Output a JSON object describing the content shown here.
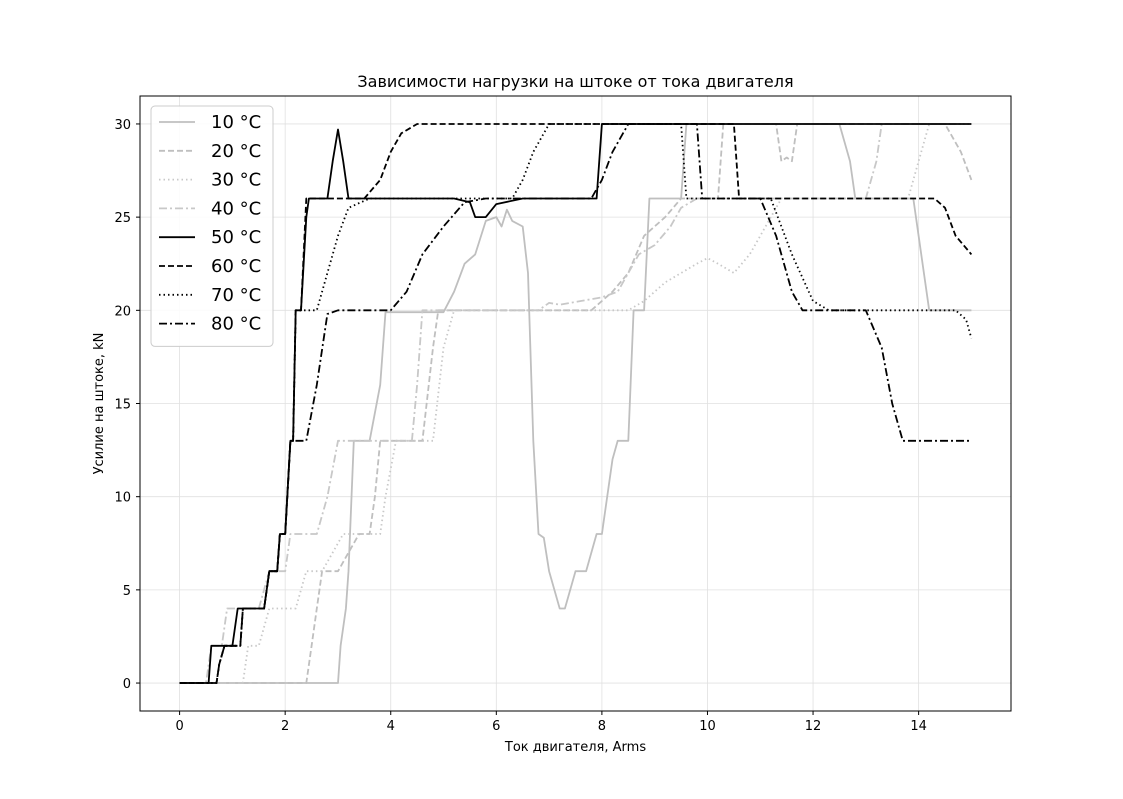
{
  "chart_data": {
    "type": "line",
    "title": "Зависимости нагрузки на штоке от тока двигателя",
    "xlabel": "Ток двигателя, Arms",
    "ylabel": "Усилие на штоке, kN",
    "xlim": [
      -0.75,
      15.75
    ],
    "ylim": [
      -1.5,
      31.5
    ],
    "xticks": [
      0,
      2,
      4,
      6,
      8,
      10,
      12,
      14
    ],
    "yticks": [
      0,
      5,
      10,
      15,
      20,
      25,
      30
    ],
    "grid": true,
    "legend_position": "top-left",
    "series": [
      {
        "name": "10 °C",
        "color": "#bfbfbf",
        "linestyle": "solid",
        "points": [
          [
            0,
            0
          ],
          [
            3.0,
            0
          ],
          [
            3.05,
            2
          ],
          [
            3.15,
            4
          ],
          [
            3.2,
            6
          ],
          [
            3.3,
            13
          ],
          [
            3.6,
            13
          ],
          [
            3.8,
            16
          ],
          [
            3.9,
            19.9
          ],
          [
            5.0,
            19.9
          ],
          [
            5.2,
            21
          ],
          [
            5.4,
            22.5
          ],
          [
            5.6,
            23
          ],
          [
            5.8,
            24.8
          ],
          [
            6.0,
            25
          ],
          [
            6.1,
            24.5
          ],
          [
            6.2,
            25.4
          ],
          [
            6.3,
            24.8
          ],
          [
            6.5,
            24.5
          ],
          [
            6.6,
            22
          ],
          [
            6.7,
            13
          ],
          [
            6.8,
            8
          ],
          [
            6.9,
            7.8
          ],
          [
            7.0,
            6
          ],
          [
            7.2,
            4
          ],
          [
            7.3,
            4
          ],
          [
            7.5,
            6
          ],
          [
            7.7,
            6
          ],
          [
            7.9,
            8
          ],
          [
            8.0,
            8
          ],
          [
            8.2,
            12
          ],
          [
            8.3,
            13
          ],
          [
            8.5,
            13
          ],
          [
            8.6,
            20
          ],
          [
            8.8,
            20
          ],
          [
            8.9,
            26
          ],
          [
            9.5,
            26
          ],
          [
            9.6,
            30
          ],
          [
            12.5,
            30
          ],
          [
            12.7,
            28
          ],
          [
            12.8,
            26
          ],
          [
            13.9,
            26
          ],
          [
            14.0,
            24
          ],
          [
            14.2,
            20
          ],
          [
            15.0,
            20
          ]
        ]
      },
      {
        "name": "20 °C",
        "color": "#bfbfbf",
        "linestyle": "dashed",
        "points": [
          [
            0,
            0
          ],
          [
            2.4,
            0
          ],
          [
            2.5,
            2
          ],
          [
            2.6,
            4
          ],
          [
            2.7,
            6
          ],
          [
            3.0,
            6
          ],
          [
            3.2,
            7
          ],
          [
            3.4,
            8
          ],
          [
            3.6,
            8
          ],
          [
            3.7,
            10
          ],
          [
            3.8,
            13
          ],
          [
            4.6,
            13
          ],
          [
            4.8,
            18
          ],
          [
            4.9,
            20
          ],
          [
            7.8,
            20
          ],
          [
            8.0,
            20.5
          ],
          [
            8.2,
            21
          ],
          [
            8.5,
            22
          ],
          [
            8.8,
            24
          ],
          [
            9.2,
            25
          ],
          [
            9.5,
            26
          ],
          [
            10.2,
            26
          ],
          [
            10.3,
            30
          ],
          [
            11.3,
            30
          ],
          [
            11.4,
            28
          ],
          [
            11.5,
            28.2
          ],
          [
            11.6,
            28
          ],
          [
            11.7,
            30
          ],
          [
            14.5,
            30
          ],
          [
            14.8,
            28.5
          ],
          [
            15.0,
            27
          ]
        ]
      },
      {
        "name": "30 °C",
        "color": "#c8c8c8",
        "linestyle": "dotted",
        "points": [
          [
            0,
            0
          ],
          [
            1.2,
            0
          ],
          [
            1.3,
            2
          ],
          [
            1.5,
            2
          ],
          [
            1.7,
            4
          ],
          [
            2.2,
            4
          ],
          [
            2.4,
            6
          ],
          [
            2.7,
            6
          ],
          [
            2.9,
            7
          ],
          [
            3.1,
            8
          ],
          [
            3.5,
            8
          ],
          [
            3.8,
            8
          ],
          [
            3.9,
            10
          ],
          [
            4.1,
            13
          ],
          [
            4.8,
            13
          ],
          [
            5.0,
            18
          ],
          [
            5.2,
            20
          ],
          [
            8.5,
            20
          ],
          [
            8.8,
            20.5
          ],
          [
            9.2,
            21.5
          ],
          [
            9.5,
            22
          ],
          [
            9.8,
            22.5
          ],
          [
            10.0,
            22.8
          ],
          [
            10.2,
            22.5
          ],
          [
            10.5,
            22
          ],
          [
            10.8,
            23
          ],
          [
            11.0,
            24
          ],
          [
            11.4,
            26
          ],
          [
            13.8,
            26
          ],
          [
            14.0,
            28
          ],
          [
            14.2,
            30
          ],
          [
            15.0,
            30
          ]
        ]
      },
      {
        "name": "40 °C",
        "color": "#c8c8c8",
        "linestyle": "dashdot",
        "points": [
          [
            0,
            0
          ],
          [
            0.5,
            0
          ],
          [
            0.6,
            2
          ],
          [
            0.8,
            2
          ],
          [
            0.9,
            4
          ],
          [
            1.5,
            4
          ],
          [
            1.7,
            6
          ],
          [
            2.0,
            6
          ],
          [
            2.1,
            8
          ],
          [
            2.6,
            8
          ],
          [
            2.8,
            10
          ],
          [
            3.0,
            13
          ],
          [
            4.4,
            13
          ],
          [
            4.5,
            16
          ],
          [
            4.6,
            20
          ],
          [
            6.8,
            20
          ],
          [
            7.0,
            20.4
          ],
          [
            7.2,
            20.3
          ],
          [
            7.6,
            20.5
          ],
          [
            8.0,
            20.7
          ],
          [
            8.3,
            21
          ],
          [
            8.5,
            22
          ],
          [
            8.7,
            23
          ],
          [
            9.0,
            23.5
          ],
          [
            9.3,
            24.5
          ],
          [
            9.5,
            25.5
          ],
          [
            9.8,
            26
          ],
          [
            13.0,
            26
          ],
          [
            13.2,
            28
          ],
          [
            13.3,
            30
          ],
          [
            14.8,
            30
          ]
        ]
      },
      {
        "name": "50 °C",
        "color": "#000000",
        "linestyle": "solid",
        "points": [
          [
            0,
            0
          ],
          [
            0.55,
            0
          ],
          [
            0.6,
            2
          ],
          [
            1.0,
            2
          ],
          [
            1.1,
            4
          ],
          [
            1.6,
            4
          ],
          [
            1.7,
            6
          ],
          [
            1.85,
            6
          ],
          [
            1.9,
            8
          ],
          [
            2.0,
            8
          ],
          [
            2.1,
            13
          ],
          [
            2.15,
            13
          ],
          [
            2.2,
            20
          ],
          [
            2.3,
            20
          ],
          [
            2.4,
            25
          ],
          [
            2.45,
            26
          ],
          [
            2.8,
            26
          ],
          [
            2.9,
            28
          ],
          [
            3.0,
            29.7
          ],
          [
            3.1,
            28
          ],
          [
            3.2,
            26
          ],
          [
            5.2,
            26
          ],
          [
            5.5,
            25.8
          ],
          [
            5.6,
            25
          ],
          [
            5.8,
            25
          ],
          [
            6.0,
            25.7
          ],
          [
            6.5,
            26
          ],
          [
            7.9,
            26
          ],
          [
            8.0,
            30
          ],
          [
            15.0,
            30
          ]
        ]
      },
      {
        "name": "60 °C",
        "color": "#000000",
        "linestyle": "dashed",
        "points": [
          [
            0,
            0
          ],
          [
            0.7,
            0
          ],
          [
            0.75,
            1
          ],
          [
            0.85,
            2
          ],
          [
            1.15,
            2
          ],
          [
            1.2,
            4
          ],
          [
            1.6,
            4
          ],
          [
            1.7,
            6
          ],
          [
            1.85,
            6
          ],
          [
            1.9,
            8
          ],
          [
            2.0,
            8
          ],
          [
            2.1,
            13
          ],
          [
            2.15,
            13
          ],
          [
            2.2,
            20
          ],
          [
            2.3,
            20
          ],
          [
            2.4,
            26
          ],
          [
            3.5,
            26
          ],
          [
            3.8,
            27
          ],
          [
            4.0,
            28.5
          ],
          [
            4.2,
            29.5
          ],
          [
            4.5,
            30
          ],
          [
            10.5,
            30
          ],
          [
            10.6,
            26
          ],
          [
            14.3,
            26
          ],
          [
            14.5,
            25.5
          ],
          [
            14.7,
            24
          ],
          [
            15.0,
            23
          ]
        ]
      },
      {
        "name": "70 °C",
        "color": "#000000",
        "linestyle": "dotted",
        "points": [
          [
            0,
            0
          ],
          [
            0.7,
            0
          ],
          [
            0.75,
            1
          ],
          [
            0.85,
            2
          ],
          [
            1.15,
            2
          ],
          [
            1.2,
            4
          ],
          [
            1.6,
            4
          ],
          [
            1.7,
            6
          ],
          [
            1.85,
            6
          ],
          [
            1.9,
            8
          ],
          [
            2.0,
            8
          ],
          [
            2.1,
            13
          ],
          [
            2.15,
            13
          ],
          [
            2.2,
            20
          ],
          [
            2.6,
            20
          ],
          [
            2.8,
            22
          ],
          [
            3.0,
            24
          ],
          [
            3.2,
            25.5
          ],
          [
            3.6,
            26
          ],
          [
            6.3,
            26
          ],
          [
            6.5,
            27
          ],
          [
            6.7,
            28.5
          ],
          [
            7.0,
            30
          ],
          [
            9.5,
            30
          ],
          [
            9.6,
            26
          ],
          [
            11.2,
            26
          ],
          [
            11.6,
            23
          ],
          [
            12.0,
            20.5
          ],
          [
            12.3,
            20
          ],
          [
            14.7,
            20
          ],
          [
            14.9,
            19.5
          ],
          [
            15.0,
            18.5
          ]
        ]
      },
      {
        "name": "80 °C",
        "color": "#000000",
        "linestyle": "dashdot",
        "points": [
          [
            0,
            0
          ],
          [
            0.7,
            0
          ],
          [
            0.75,
            1
          ],
          [
            0.85,
            2
          ],
          [
            1.15,
            2
          ],
          [
            1.2,
            4
          ],
          [
            1.6,
            4
          ],
          [
            1.7,
            6
          ],
          [
            1.85,
            6
          ],
          [
            1.9,
            8
          ],
          [
            2.0,
            8
          ],
          [
            2.1,
            13
          ],
          [
            2.4,
            13
          ],
          [
            2.6,
            16
          ],
          [
            2.8,
            19.8
          ],
          [
            3.0,
            20
          ],
          [
            4.0,
            20
          ],
          [
            4.3,
            21
          ],
          [
            4.6,
            23
          ],
          [
            5.0,
            24.5
          ],
          [
            5.4,
            25.8
          ],
          [
            5.8,
            26
          ],
          [
            7.8,
            26
          ],
          [
            8.0,
            27
          ],
          [
            8.2,
            28.5
          ],
          [
            8.5,
            30
          ],
          [
            9.8,
            30
          ],
          [
            9.9,
            26
          ],
          [
            11.0,
            26
          ],
          [
            11.3,
            24
          ],
          [
            11.6,
            21
          ],
          [
            11.8,
            20
          ],
          [
            13.0,
            20
          ],
          [
            13.3,
            18
          ],
          [
            13.5,
            15
          ],
          [
            13.7,
            13
          ],
          [
            15.0,
            13
          ]
        ]
      }
    ]
  }
}
